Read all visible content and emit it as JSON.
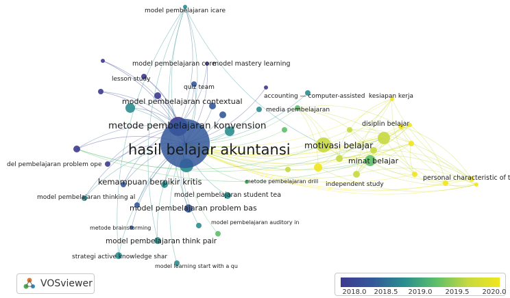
{
  "labels": {
    "icare": "model pembelajaran icare",
    "core": "model pembelajaran core",
    "mastery": "model mastery learning",
    "lesson_study": "lesson study",
    "quiz_team": "quiz team",
    "accounting": "accounting — computer-assisted",
    "kesiapan": "kesiapan kerja",
    "contextual": "model pembelajaran contextual",
    "media": "media pembelajaran",
    "konvension": "metode pembelajaran konvension",
    "disiplin": "disiplin belajar",
    "motivasi": "motivasi belajar",
    "hasil": "hasil belajar akuntansi",
    "problem_ope": "del pembelajaran problem ope",
    "minat": "minat belajar",
    "personal": "personal characteristic of tea",
    "kemampuan": "kemampuan berpikir kritis",
    "drill": "metode pembelajaran drill",
    "independent": "independent study",
    "student_tea": "model pembelajaran student tea",
    "thinking_al": "model pembelajaran thinking al",
    "problem_bas": "model pembelajaran problem bas",
    "auditory": "model pembelajaran auditory in",
    "brainstorming": "metode brainstorming",
    "think_pair": "model pembelajaran think pair",
    "active_knowledge": "strategi active knowledge shar",
    "start_with": "model learning start with a qu"
  },
  "logo": {
    "name": "VOSviewer"
  },
  "legend": {
    "ticks": [
      "2018.0",
      "2018.5",
      "2019.0",
      "2019.5",
      "2020.0"
    ],
    "colors": [
      "#3e3a8f",
      "#34589a",
      "#2a8d8e",
      "#5cbf6a",
      "#c6d940",
      "#f1e61e"
    ]
  }
}
